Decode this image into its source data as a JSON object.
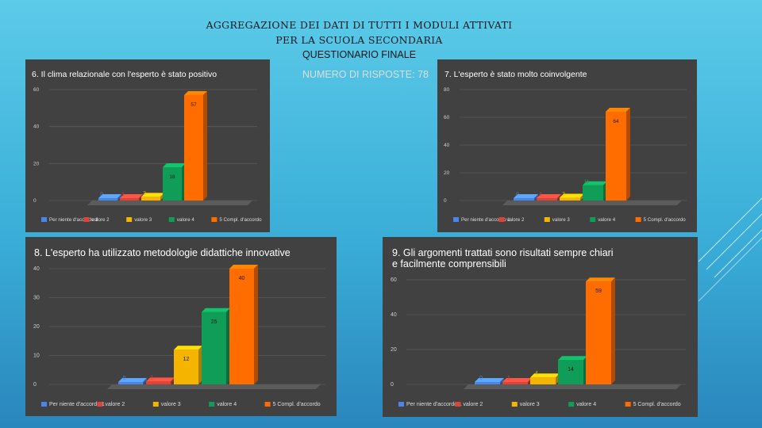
{
  "header": {
    "line1": "AGGREGAZIONE DEI DATI DI TUTTI I MODULI ATTIVATI",
    "line2": "PER LA SCUOLA SECONDARIA",
    "line3": "QUESTIONARIO FINALE",
    "line4": "NUMERO DI RISPOSTE: 78"
  },
  "colors": {
    "background": "#3aaed8",
    "panel": "#414141",
    "series": [
      "#4a86e8",
      "#db4437",
      "#f4b400",
      "#0f9d58",
      "#ff6d00"
    ]
  },
  "chart_data": [
    {
      "type": "bar",
      "title": "6. Il clima relazionale con l'esperto è stato positivo",
      "categories": [
        "Per niente d'accordo 1",
        "valore 2",
        "valore 3",
        "valore 4",
        "5 Compl. d'accordo"
      ],
      "values": [
        0,
        1,
        2,
        18,
        57
      ],
      "ylim": [
        0,
        60
      ],
      "yticks": [
        0,
        20,
        40,
        60
      ],
      "grid": true,
      "legend": "bottom"
    },
    {
      "type": "bar",
      "title": "7. L'esperto è stato molto coinvolgente",
      "categories": [
        "Per niente d'accordo 1",
        "valore 2",
        "valore 3",
        "valore 4",
        "5 Compl. d'accordo"
      ],
      "values": [
        0,
        1,
        2,
        11,
        64
      ],
      "ylim": [
        0,
        80
      ],
      "yticks": [
        0,
        20,
        40,
        60,
        80
      ],
      "grid": true,
      "legend": "bottom"
    },
    {
      "type": "bar",
      "title": "8. L'esperto ha utilizzato metodologie didattiche innovative",
      "categories": [
        "Per niente d'accordo 1",
        "valore 2",
        "valore 3",
        "valore 4",
        "5 Compl. d'accordo"
      ],
      "values": [
        0,
        1,
        12,
        25,
        40
      ],
      "ylim": [
        0,
        40
      ],
      "yticks": [
        0,
        10,
        20,
        30,
        40
      ],
      "grid": true,
      "legend": "bottom"
    },
    {
      "type": "bar",
      "title": "9. Gli argomenti trattati sono risultati sempre chiari e facilmente comprensibili",
      "categories": [
        "Per niente d'accordo 1",
        "valore 2",
        "valore 3",
        "valore 4",
        "5 Compl. d'accordo"
      ],
      "values": [
        0,
        1,
        4,
        14,
        59
      ],
      "ylim": [
        0,
        60
      ],
      "yticks": [
        0,
        20,
        40,
        60
      ],
      "grid": true,
      "legend": "bottom"
    }
  ]
}
